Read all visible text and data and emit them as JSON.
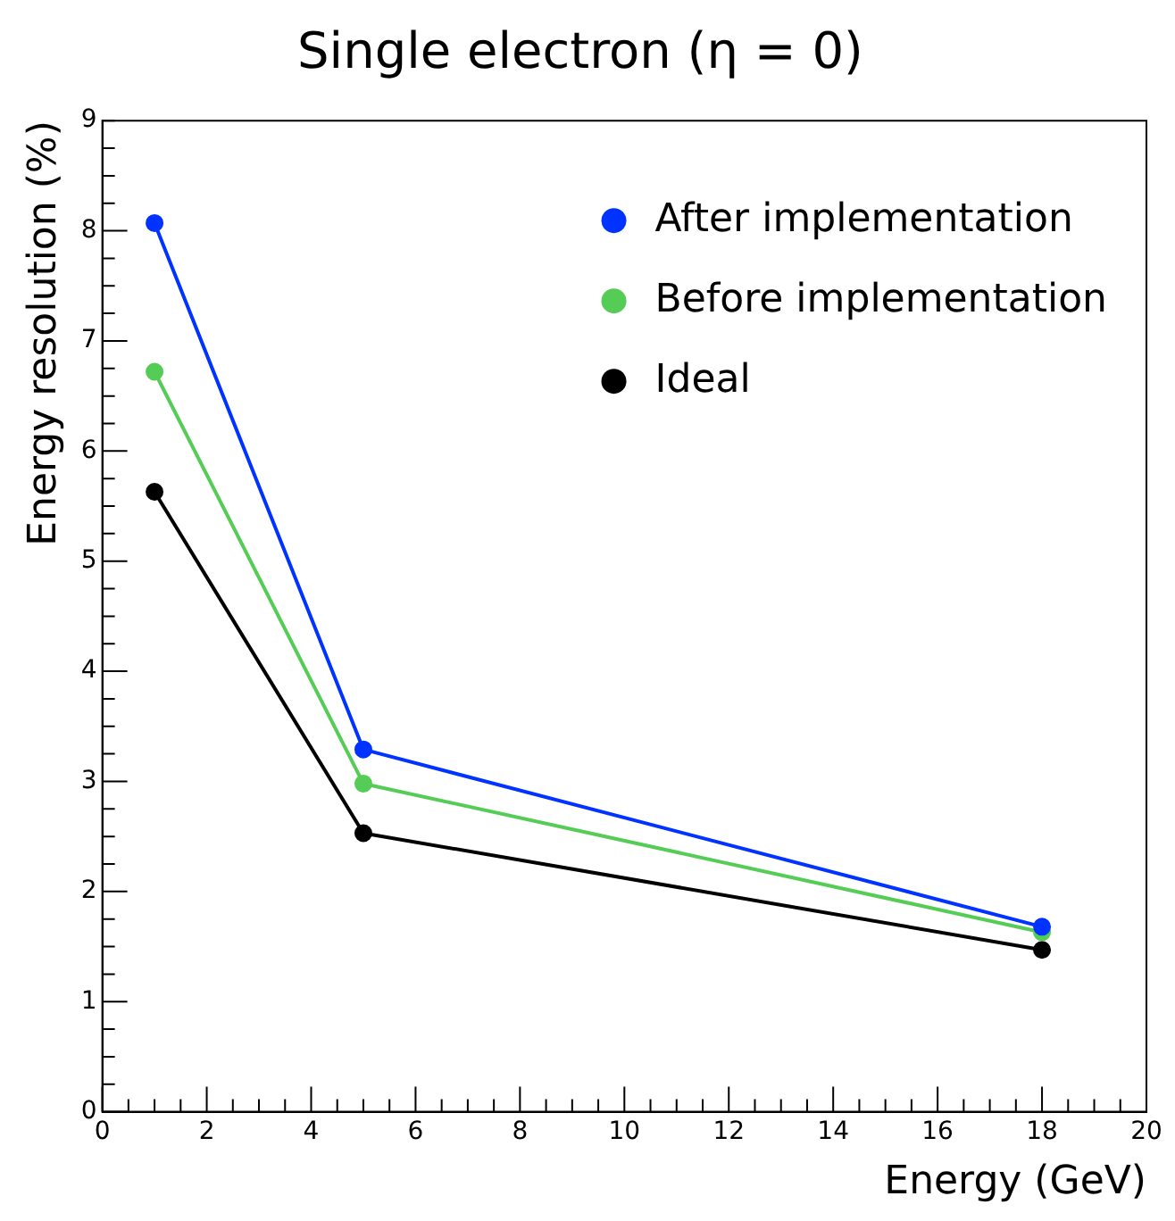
{
  "chart_data": {
    "type": "line",
    "title": "Single electron (η = 0)",
    "xlabel": "Energy (GeV)",
    "ylabel": "Energy resolution (%)",
    "x": [
      1,
      5,
      18
    ],
    "series": [
      {
        "name": "After implementation",
        "color": "#0033ff",
        "values": [
          8.07,
          3.29,
          1.68
        ]
      },
      {
        "name": "Before implementation",
        "color": "#55cc55",
        "values": [
          6.72,
          2.98,
          1.63
        ]
      },
      {
        "name": "Ideal",
        "color": "#000000",
        "values": [
          5.63,
          2.53,
          1.47
        ]
      }
    ],
    "xlim": [
      0,
      20
    ],
    "xticks": [
      0,
      2,
      4,
      6,
      8,
      10,
      12,
      14,
      16,
      18,
      20
    ],
    "ylim": [
      0,
      9
    ],
    "yticks": [
      0,
      1,
      2,
      3,
      4,
      5,
      6,
      7,
      8,
      9
    ],
    "grid": false,
    "legend": "top right",
    "marker": "circle",
    "line_style": "solid"
  }
}
